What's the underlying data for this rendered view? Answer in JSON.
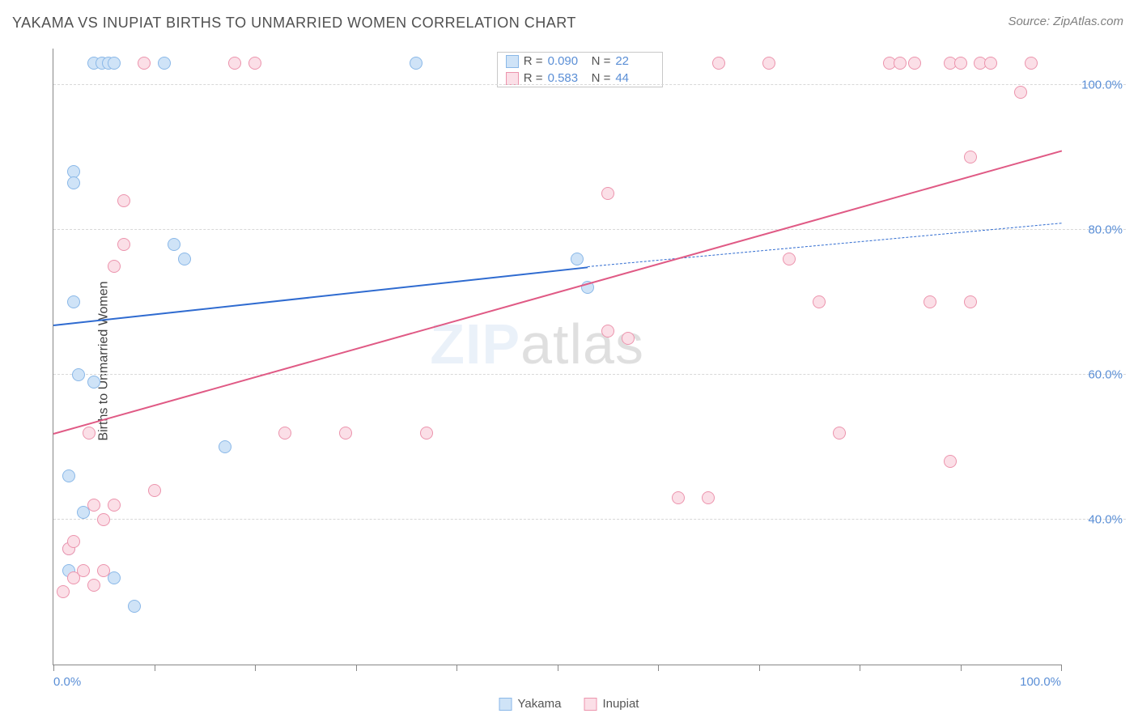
{
  "title": "YAKAMA VS INUPIAT BIRTHS TO UNMARRIED WOMEN CORRELATION CHART",
  "source": "Source: ZipAtlas.com",
  "ylabel": "Births to Unmarried Women",
  "watermark_zip": "ZIP",
  "watermark_atlas": "atlas",
  "chart": {
    "type": "scatter",
    "xlim": [
      0,
      100
    ],
    "ylim": [
      20,
      105
    ],
    "xtick_label_left": "0.0%",
    "xtick_label_right": "100.0%",
    "xtick_positions": [
      0,
      10,
      20,
      30,
      40,
      50,
      60,
      70,
      80,
      90,
      100
    ],
    "ytick_positions": [
      40,
      60,
      80,
      100
    ],
    "ytick_labels": [
      "40.0%",
      "60.0%",
      "80.0%",
      "100.0%"
    ],
    "grid_color": "#d8d8d8",
    "axis_color": "#888888",
    "background_color": "#ffffff",
    "marker_radius": 8,
    "marker_stroke_width": 1.5,
    "trend_line_width": 2.5,
    "label_fontsize": 15,
    "label_color": "#5b8fd6",
    "series": [
      {
        "name": "Yakama",
        "fill": "#cfe3f7",
        "stroke": "#8ab8e8",
        "stats": {
          "R": "0.090",
          "N": "22"
        },
        "trend": {
          "x1": 0,
          "y1": 67,
          "x2": 53,
          "y2": 75,
          "dashed_continue": true,
          "x2_dash": 100,
          "y2_dash": 81,
          "color": "#2f6bd0"
        },
        "points": [
          {
            "x": 2,
            "y": 88
          },
          {
            "x": 2,
            "y": 86.5
          },
          {
            "x": 4,
            "y": 103
          },
          {
            "x": 4.8,
            "y": 103
          },
          {
            "x": 5.5,
            "y": 103
          },
          {
            "x": 6,
            "y": 103
          },
          {
            "x": 11,
            "y": 103
          },
          {
            "x": 8,
            "y": 28
          },
          {
            "x": 12,
            "y": 78
          },
          {
            "x": 13,
            "y": 76
          },
          {
            "x": 2,
            "y": 70
          },
          {
            "x": 2.5,
            "y": 60
          },
          {
            "x": 4,
            "y": 59
          },
          {
            "x": 1.5,
            "y": 46
          },
          {
            "x": 1.5,
            "y": 36
          },
          {
            "x": 1.5,
            "y": 33
          },
          {
            "x": 3,
            "y": 41
          },
          {
            "x": 6,
            "y": 32
          },
          {
            "x": 17,
            "y": 50
          },
          {
            "x": 36,
            "y": 103
          },
          {
            "x": 52,
            "y": 76
          },
          {
            "x": 53,
            "y": 72
          }
        ]
      },
      {
        "name": "Inupiat",
        "fill": "#fbdfe7",
        "stroke": "#ec94ad",
        "stats": {
          "R": "0.583",
          "N": "44"
        },
        "trend": {
          "x1": 0,
          "y1": 52,
          "x2": 100,
          "y2": 91,
          "dashed_continue": false,
          "color": "#e05a85"
        },
        "points": [
          {
            "x": 1,
            "y": 30
          },
          {
            "x": 1.5,
            "y": 36
          },
          {
            "x": 2,
            "y": 37
          },
          {
            "x": 2,
            "y": 32
          },
          {
            "x": 3,
            "y": 33
          },
          {
            "x": 4,
            "y": 31
          },
          {
            "x": 5,
            "y": 33
          },
          {
            "x": 3.5,
            "y": 52
          },
          {
            "x": 4,
            "y": 42
          },
          {
            "x": 5,
            "y": 40
          },
          {
            "x": 6,
            "y": 42
          },
          {
            "x": 6,
            "y": 75
          },
          {
            "x": 7,
            "y": 78
          },
          {
            "x": 7,
            "y": 84
          },
          {
            "x": 9,
            "y": 103
          },
          {
            "x": 10,
            "y": 44
          },
          {
            "x": 18,
            "y": 103
          },
          {
            "x": 20,
            "y": 103
          },
          {
            "x": 23,
            "y": 52
          },
          {
            "x": 29,
            "y": 52
          },
          {
            "x": 37,
            "y": 52
          },
          {
            "x": 55,
            "y": 85
          },
          {
            "x": 55,
            "y": 66
          },
          {
            "x": 57,
            "y": 65
          },
          {
            "x": 62,
            "y": 43
          },
          {
            "x": 65,
            "y": 43
          },
          {
            "x": 66,
            "y": 103
          },
          {
            "x": 71,
            "y": 103
          },
          {
            "x": 73,
            "y": 76
          },
          {
            "x": 76,
            "y": 70
          },
          {
            "x": 78,
            "y": 52
          },
          {
            "x": 83,
            "y": 103
          },
          {
            "x": 84,
            "y": 103
          },
          {
            "x": 85.5,
            "y": 103
          },
          {
            "x": 87,
            "y": 70
          },
          {
            "x": 89,
            "y": 103
          },
          {
            "x": 90,
            "y": 103
          },
          {
            "x": 91,
            "y": 70
          },
          {
            "x": 92,
            "y": 103
          },
          {
            "x": 93,
            "y": 103
          },
          {
            "x": 89,
            "y": 48
          },
          {
            "x": 91,
            "y": 90
          },
          {
            "x": 97,
            "y": 103
          },
          {
            "x": 96,
            "y": 99
          }
        ]
      }
    ]
  },
  "legend": {
    "items": [
      {
        "label": "Yakama",
        "fill": "#cfe3f7",
        "stroke": "#8ab8e8"
      },
      {
        "label": "Inupiat",
        "fill": "#fbdfe7",
        "stroke": "#ec94ad"
      }
    ]
  },
  "stat_labels": {
    "R": "R =",
    "N": "N ="
  }
}
